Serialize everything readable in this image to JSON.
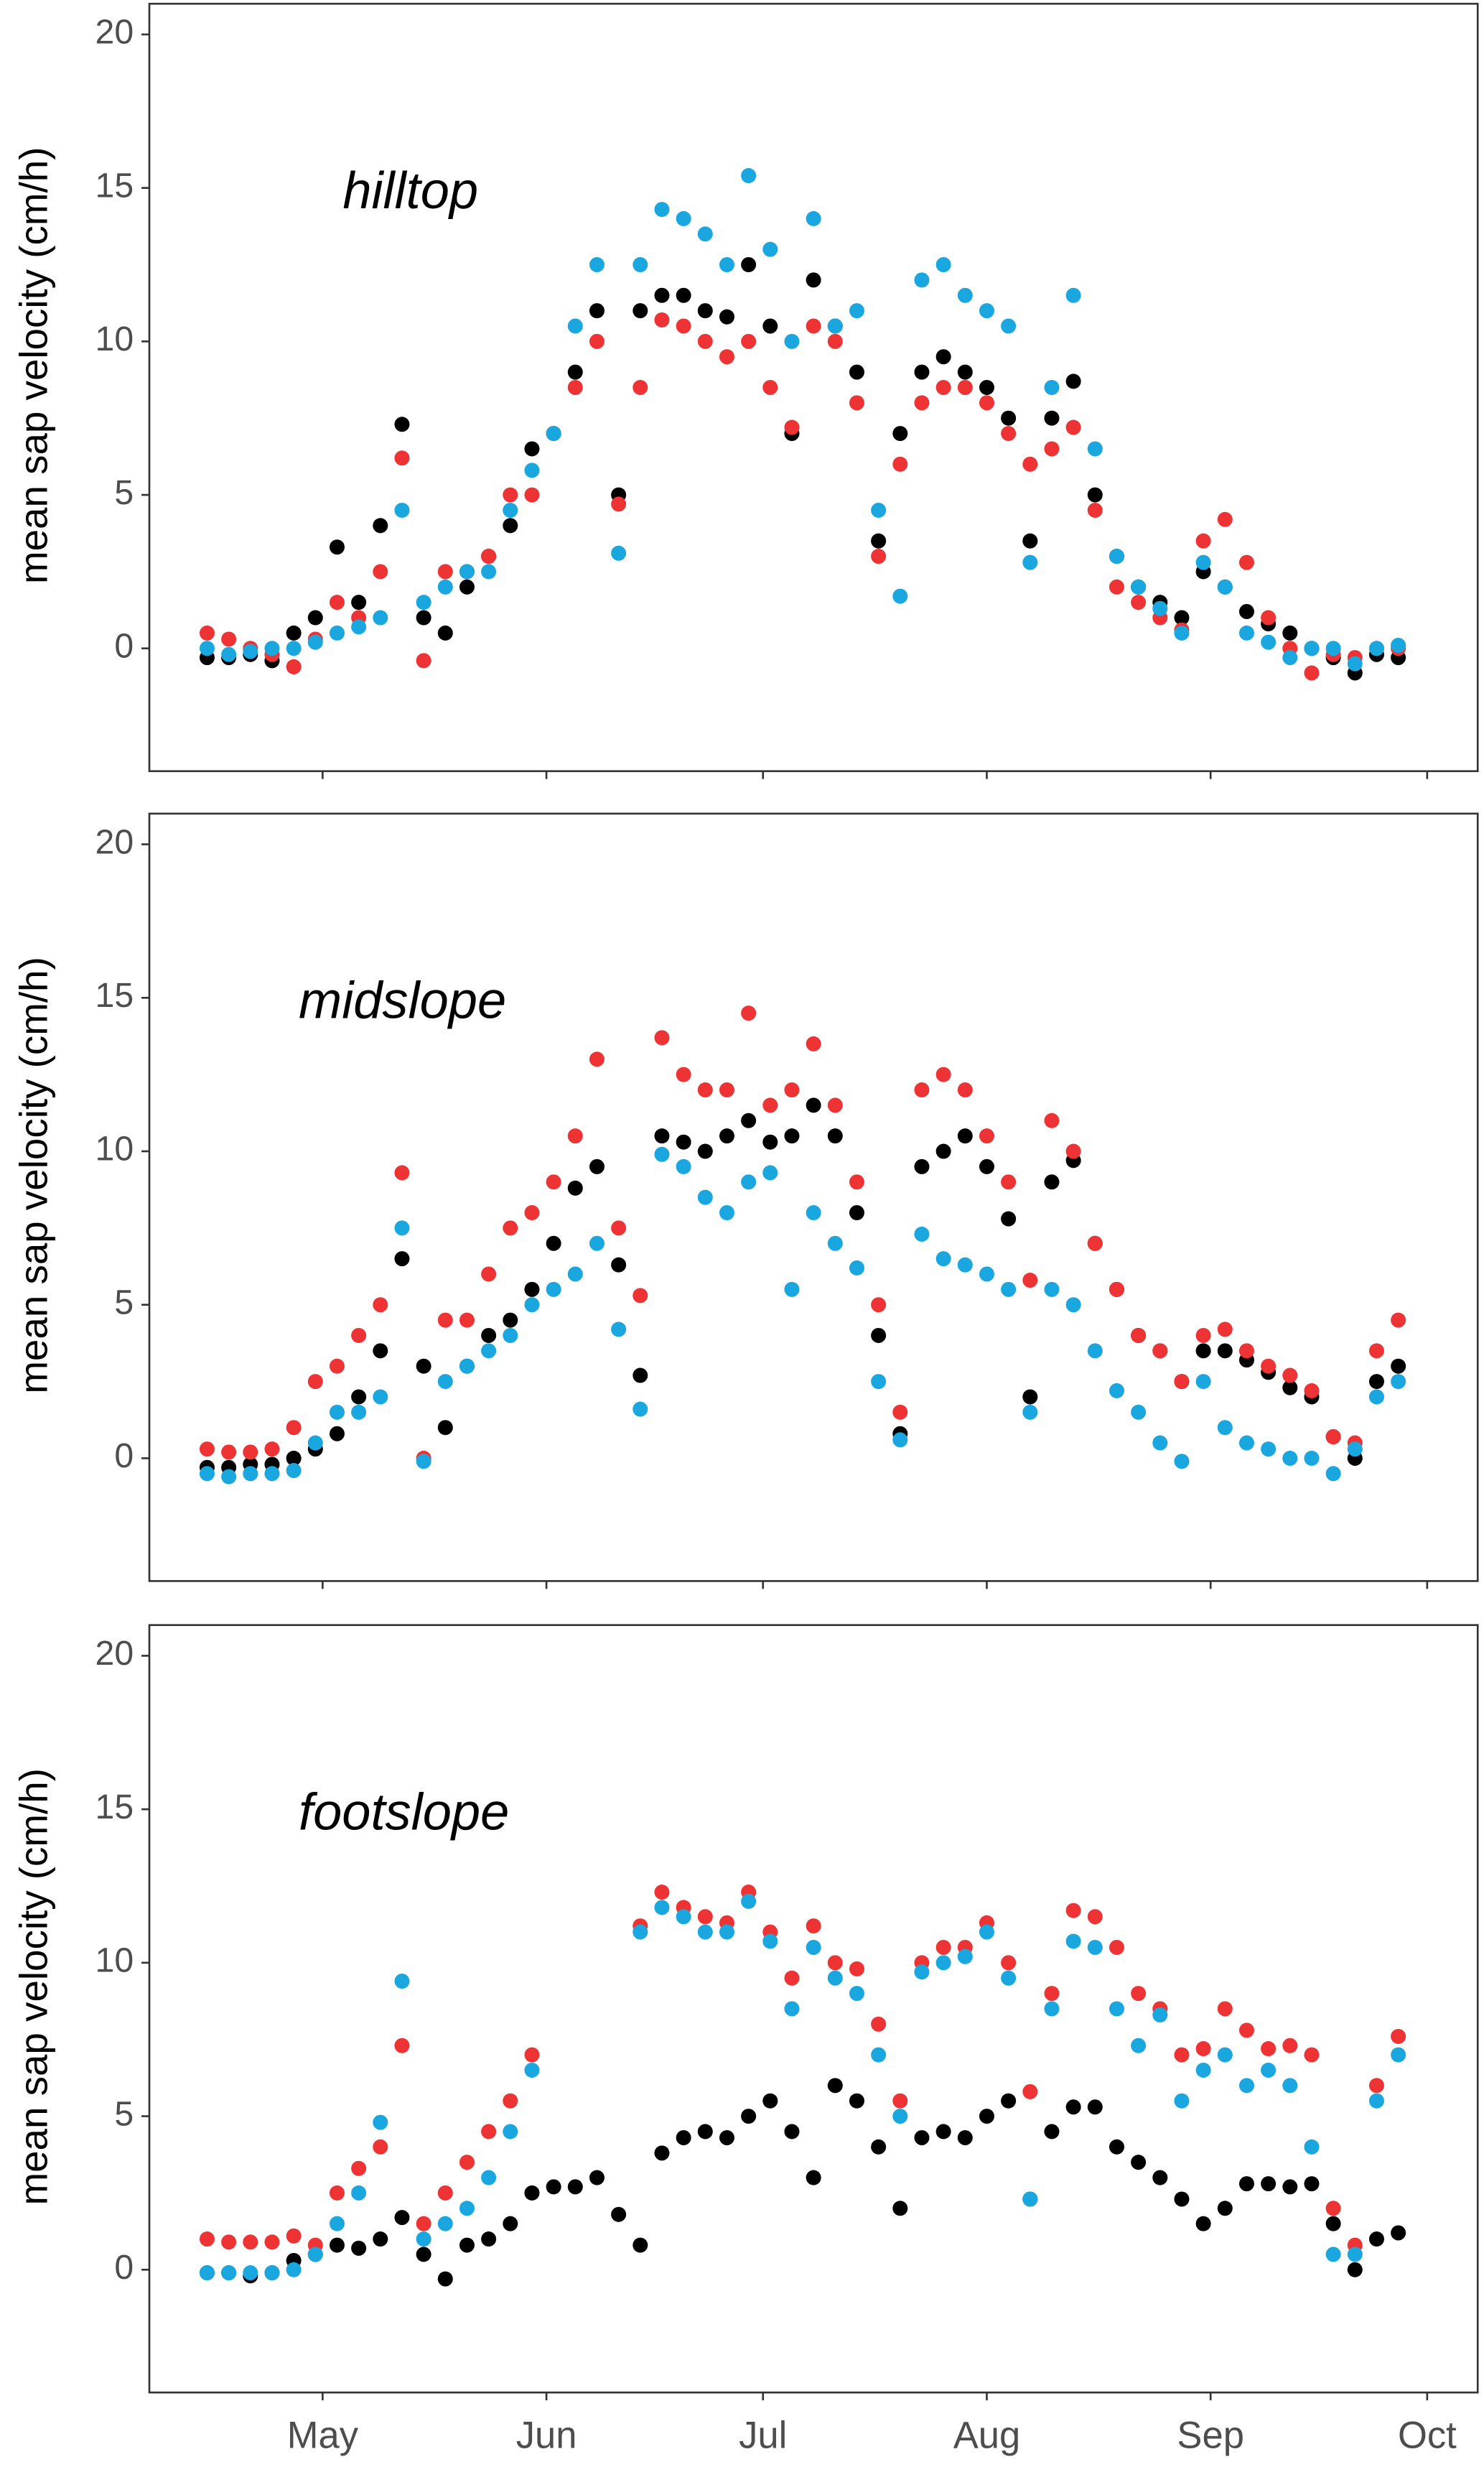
{
  "chart_data": [
    {
      "type": "scatter",
      "title": "hilltop",
      "y_label": "mean sap velocity (cm/h)",
      "x": [
        105,
        108,
        111,
        114,
        117,
        120,
        123,
        126,
        129,
        132,
        135,
        138,
        141,
        144,
        147,
        150,
        153,
        156,
        159,
        162,
        165,
        168,
        171,
        174,
        177,
        180,
        183,
        186,
        189,
        192,
        195,
        198,
        201,
        204,
        207,
        210,
        213,
        216,
        219,
        222,
        225,
        228,
        231,
        234,
        237,
        240,
        243,
        246,
        249,
        252,
        255,
        258,
        261,
        264,
        267,
        270
      ],
      "xlim": [
        97,
        281
      ],
      "xticks": [
        121,
        152,
        182,
        213,
        244,
        274
      ],
      "ylim": [
        -4,
        21
      ],
      "yticks": [
        0,
        5,
        10,
        15,
        20
      ],
      "series": [
        {
          "color": "#000000",
          "values": [
            -0.3,
            -0.3,
            -0.2,
            -0.4,
            0.5,
            1,
            3.3,
            1.5,
            4,
            7.3,
            1,
            0.5,
            2,
            3,
            4,
            6.5,
            7,
            9,
            11,
            5,
            11,
            11.5,
            11.5,
            11,
            10.8,
            12.5,
            10.5,
            7,
            12,
            10.5,
            9,
            3.5,
            7,
            9,
            9.5,
            9,
            8.5,
            7.5,
            3.5,
            7.5,
            8.7,
            5,
            3,
            2,
            1.5,
            1,
            2.5,
            2,
            1.2,
            0.8,
            0.5,
            0,
            -0.3,
            -0.8,
            -0.2,
            -0.3
          ]
        },
        {
          "color": "#ee3335",
          "values": [
            0.5,
            0.3,
            0,
            -0.2,
            -0.6,
            0.3,
            1.5,
            1,
            2.5,
            6.2,
            -0.4,
            2.5,
            2.5,
            3,
            5,
            5,
            7,
            8.5,
            10,
            4.7,
            8.5,
            10.7,
            10.5,
            10,
            9.5,
            10,
            8.5,
            7.2,
            10.5,
            10,
            8,
            3,
            6,
            8,
            8.5,
            8.5,
            8,
            7,
            6,
            6.5,
            7.2,
            4.5,
            2,
            1.5,
            1,
            0.6,
            3.5,
            4.2,
            2.8,
            1,
            0,
            -0.8,
            -0.2,
            -0.3,
            0,
            0
          ]
        },
        {
          "color": "#1aa7e0",
          "values": [
            0,
            -0.2,
            -0.1,
            0,
            0,
            0.2,
            0.5,
            0.7,
            1,
            4.5,
            1.5,
            2,
            2.5,
            2.5,
            4.5,
            5.8,
            7,
            10.5,
            12.5,
            3.1,
            12.5,
            14.3,
            14,
            13.5,
            12.5,
            15.4,
            13,
            10,
            14,
            10.5,
            11,
            4.5,
            1.7,
            12,
            12.5,
            11.5,
            11,
            10.5,
            2.8,
            8.5,
            11.5,
            6.5,
            3,
            2,
            1.3,
            0.5,
            2.8,
            2,
            0.5,
            0.2,
            -0.3,
            0,
            0,
            -0.5,
            0,
            0.1
          ]
        }
      ]
    },
    {
      "type": "scatter",
      "title": "midslope",
      "y_label": "mean sap velocity (cm/h)",
      "x": [
        105,
        108,
        111,
        114,
        117,
        120,
        123,
        126,
        129,
        132,
        135,
        138,
        141,
        144,
        147,
        150,
        153,
        156,
        159,
        162,
        165,
        168,
        171,
        174,
        177,
        180,
        183,
        186,
        189,
        192,
        195,
        198,
        201,
        204,
        207,
        210,
        213,
        216,
        219,
        222,
        225,
        228,
        231,
        234,
        237,
        240,
        243,
        246,
        249,
        252,
        255,
        258,
        261,
        264,
        267,
        270
      ],
      "xlim": [
        97,
        281
      ],
      "xticks": [
        121,
        152,
        182,
        213,
        244,
        274
      ],
      "ylim": [
        -4,
        21
      ],
      "yticks": [
        0,
        5,
        10,
        15,
        20
      ],
      "series": [
        {
          "color": "#000000",
          "values": [
            -0.3,
            -0.3,
            -0.2,
            -0.2,
            0,
            0.3,
            0.8,
            2,
            3.5,
            6.5,
            3,
            1,
            3,
            4,
            4.5,
            5.5,
            7,
            8.8,
            9.5,
            6.3,
            2.7,
            10.5,
            10.3,
            10,
            10.5,
            11,
            10.3,
            10.5,
            11.5,
            10.5,
            8,
            4,
            0.8,
            9.5,
            10,
            10.5,
            9.5,
            7.8,
            2,
            9,
            9.7,
            7,
            5.5,
            4,
            3.5,
            2.5,
            3.5,
            3.5,
            3.2,
            2.8,
            2.3,
            2,
            0.7,
            0,
            2.5,
            3
          ]
        },
        {
          "color": "#ee3335",
          "values": [
            0.3,
            0.2,
            0.2,
            0.3,
            1,
            2.5,
            3,
            4,
            5,
            9.3,
            0,
            4.5,
            4.5,
            6,
            7.5,
            8,
            9,
            10.5,
            13,
            7.5,
            5.3,
            13.7,
            12.5,
            12,
            12,
            14.5,
            11.5,
            12,
            13.5,
            11.5,
            9,
            5,
            1.5,
            12,
            12.5,
            12,
            10.5,
            9,
            5.8,
            11,
            10,
            7,
            5.5,
            4,
            3.5,
            2.5,
            4,
            4.2,
            3.5,
            3,
            2.7,
            2.2,
            0.7,
            0.5,
            3.5,
            4.5
          ]
        },
        {
          "color": "#1aa7e0",
          "values": [
            -0.5,
            -0.6,
            -0.5,
            -0.5,
            -0.4,
            0.5,
            1.5,
            1.5,
            2,
            7.5,
            -0.1,
            2.5,
            3,
            3.5,
            4,
            5,
            5.5,
            6,
            7,
            4.2,
            1.6,
            9.9,
            9.5,
            8.5,
            8,
            9,
            9.3,
            5.5,
            8,
            7,
            6.2,
            2.5,
            0.6,
            7.3,
            6.5,
            6.3,
            6,
            5.5,
            1.5,
            5.5,
            5,
            3.5,
            2.2,
            1.5,
            0.5,
            -0.1,
            2.5,
            1,
            0.5,
            0.3,
            0,
            0,
            -0.5,
            0.3,
            2,
            2.5
          ]
        }
      ]
    },
    {
      "type": "scatter",
      "title": "footslope",
      "y_label": "mean sap velocity (cm/h)",
      "x": [
        105,
        108,
        111,
        114,
        117,
        120,
        123,
        126,
        129,
        132,
        135,
        138,
        141,
        144,
        147,
        150,
        153,
        156,
        159,
        162,
        165,
        168,
        171,
        174,
        177,
        180,
        183,
        186,
        189,
        192,
        195,
        198,
        201,
        204,
        207,
        210,
        213,
        216,
        219,
        222,
        225,
        228,
        231,
        234,
        237,
        240,
        243,
        246,
        249,
        252,
        255,
        258,
        261,
        264,
        267,
        270
      ],
      "xlim": [
        97,
        281
      ],
      "xticks": [
        {
          "value": 121,
          "label": "May"
        },
        {
          "value": 152,
          "label": "Jun"
        },
        {
          "value": 182,
          "label": "Jul"
        },
        {
          "value": 213,
          "label": "Aug"
        },
        {
          "value": 244,
          "label": "Sep"
        },
        {
          "value": 274,
          "label": "Oct"
        }
      ],
      "ylim": [
        -4,
        21
      ],
      "yticks": [
        0,
        5,
        10,
        15,
        20
      ],
      "series": [
        {
          "color": "#000000",
          "values": [
            -0.1,
            -0.1,
            -0.2,
            -0.1,
            0.3,
            0.5,
            0.8,
            0.7,
            1,
            1.7,
            0.5,
            -0.3,
            0.8,
            1,
            1.5,
            2.5,
            2.7,
            2.7,
            3,
            1.8,
            0.8,
            3.8,
            4.3,
            4.5,
            4.3,
            5,
            5.5,
            4.5,
            3,
            6,
            5.5,
            4,
            2,
            4.3,
            4.5,
            4.3,
            5,
            5.5,
            2.3,
            4.5,
            5.3,
            5.3,
            4,
            3.5,
            3,
            2.3,
            1.5,
            2,
            2.8,
            2.8,
            2.7,
            2.8,
            1.5,
            0,
            1,
            1.2
          ]
        },
        {
          "color": "#ee3335",
          "values": [
            1,
            0.9,
            0.9,
            0.9,
            1.1,
            0.8,
            2.5,
            3.3,
            4,
            7.3,
            1.5,
            2.5,
            3.5,
            4.5,
            5.5,
            7,
            null,
            null,
            null,
            null,
            11.2,
            12.3,
            11.8,
            11.5,
            11.3,
            12.3,
            11,
            9.5,
            11.2,
            10,
            9.8,
            8,
            5.5,
            10,
            10.5,
            10.5,
            11.3,
            10,
            5.8,
            9,
            11.7,
            11.5,
            10.5,
            9,
            8.5,
            7,
            7.2,
            8.5,
            7.8,
            7.2,
            7.3,
            7,
            2,
            0.8,
            6,
            7.6
          ]
        },
        {
          "color": "#1aa7e0",
          "values": [
            -0.1,
            -0.1,
            -0.1,
            -0.1,
            0,
            0.5,
            1.5,
            2.5,
            4.8,
            9.4,
            1,
            1.5,
            2,
            3,
            4.5,
            6.5,
            null,
            null,
            null,
            null,
            11,
            11.8,
            11.5,
            11,
            11,
            12,
            10.7,
            8.5,
            10.5,
            9.5,
            9,
            7,
            5,
            9.7,
            10,
            10.2,
            11,
            9.5,
            2.3,
            8.5,
            10.7,
            10.5,
            8.5,
            7.3,
            8.3,
            5.5,
            6.5,
            7,
            6,
            6.5,
            6,
            4,
            0.5,
            0.5,
            5.5,
            7
          ]
        }
      ]
    }
  ]
}
